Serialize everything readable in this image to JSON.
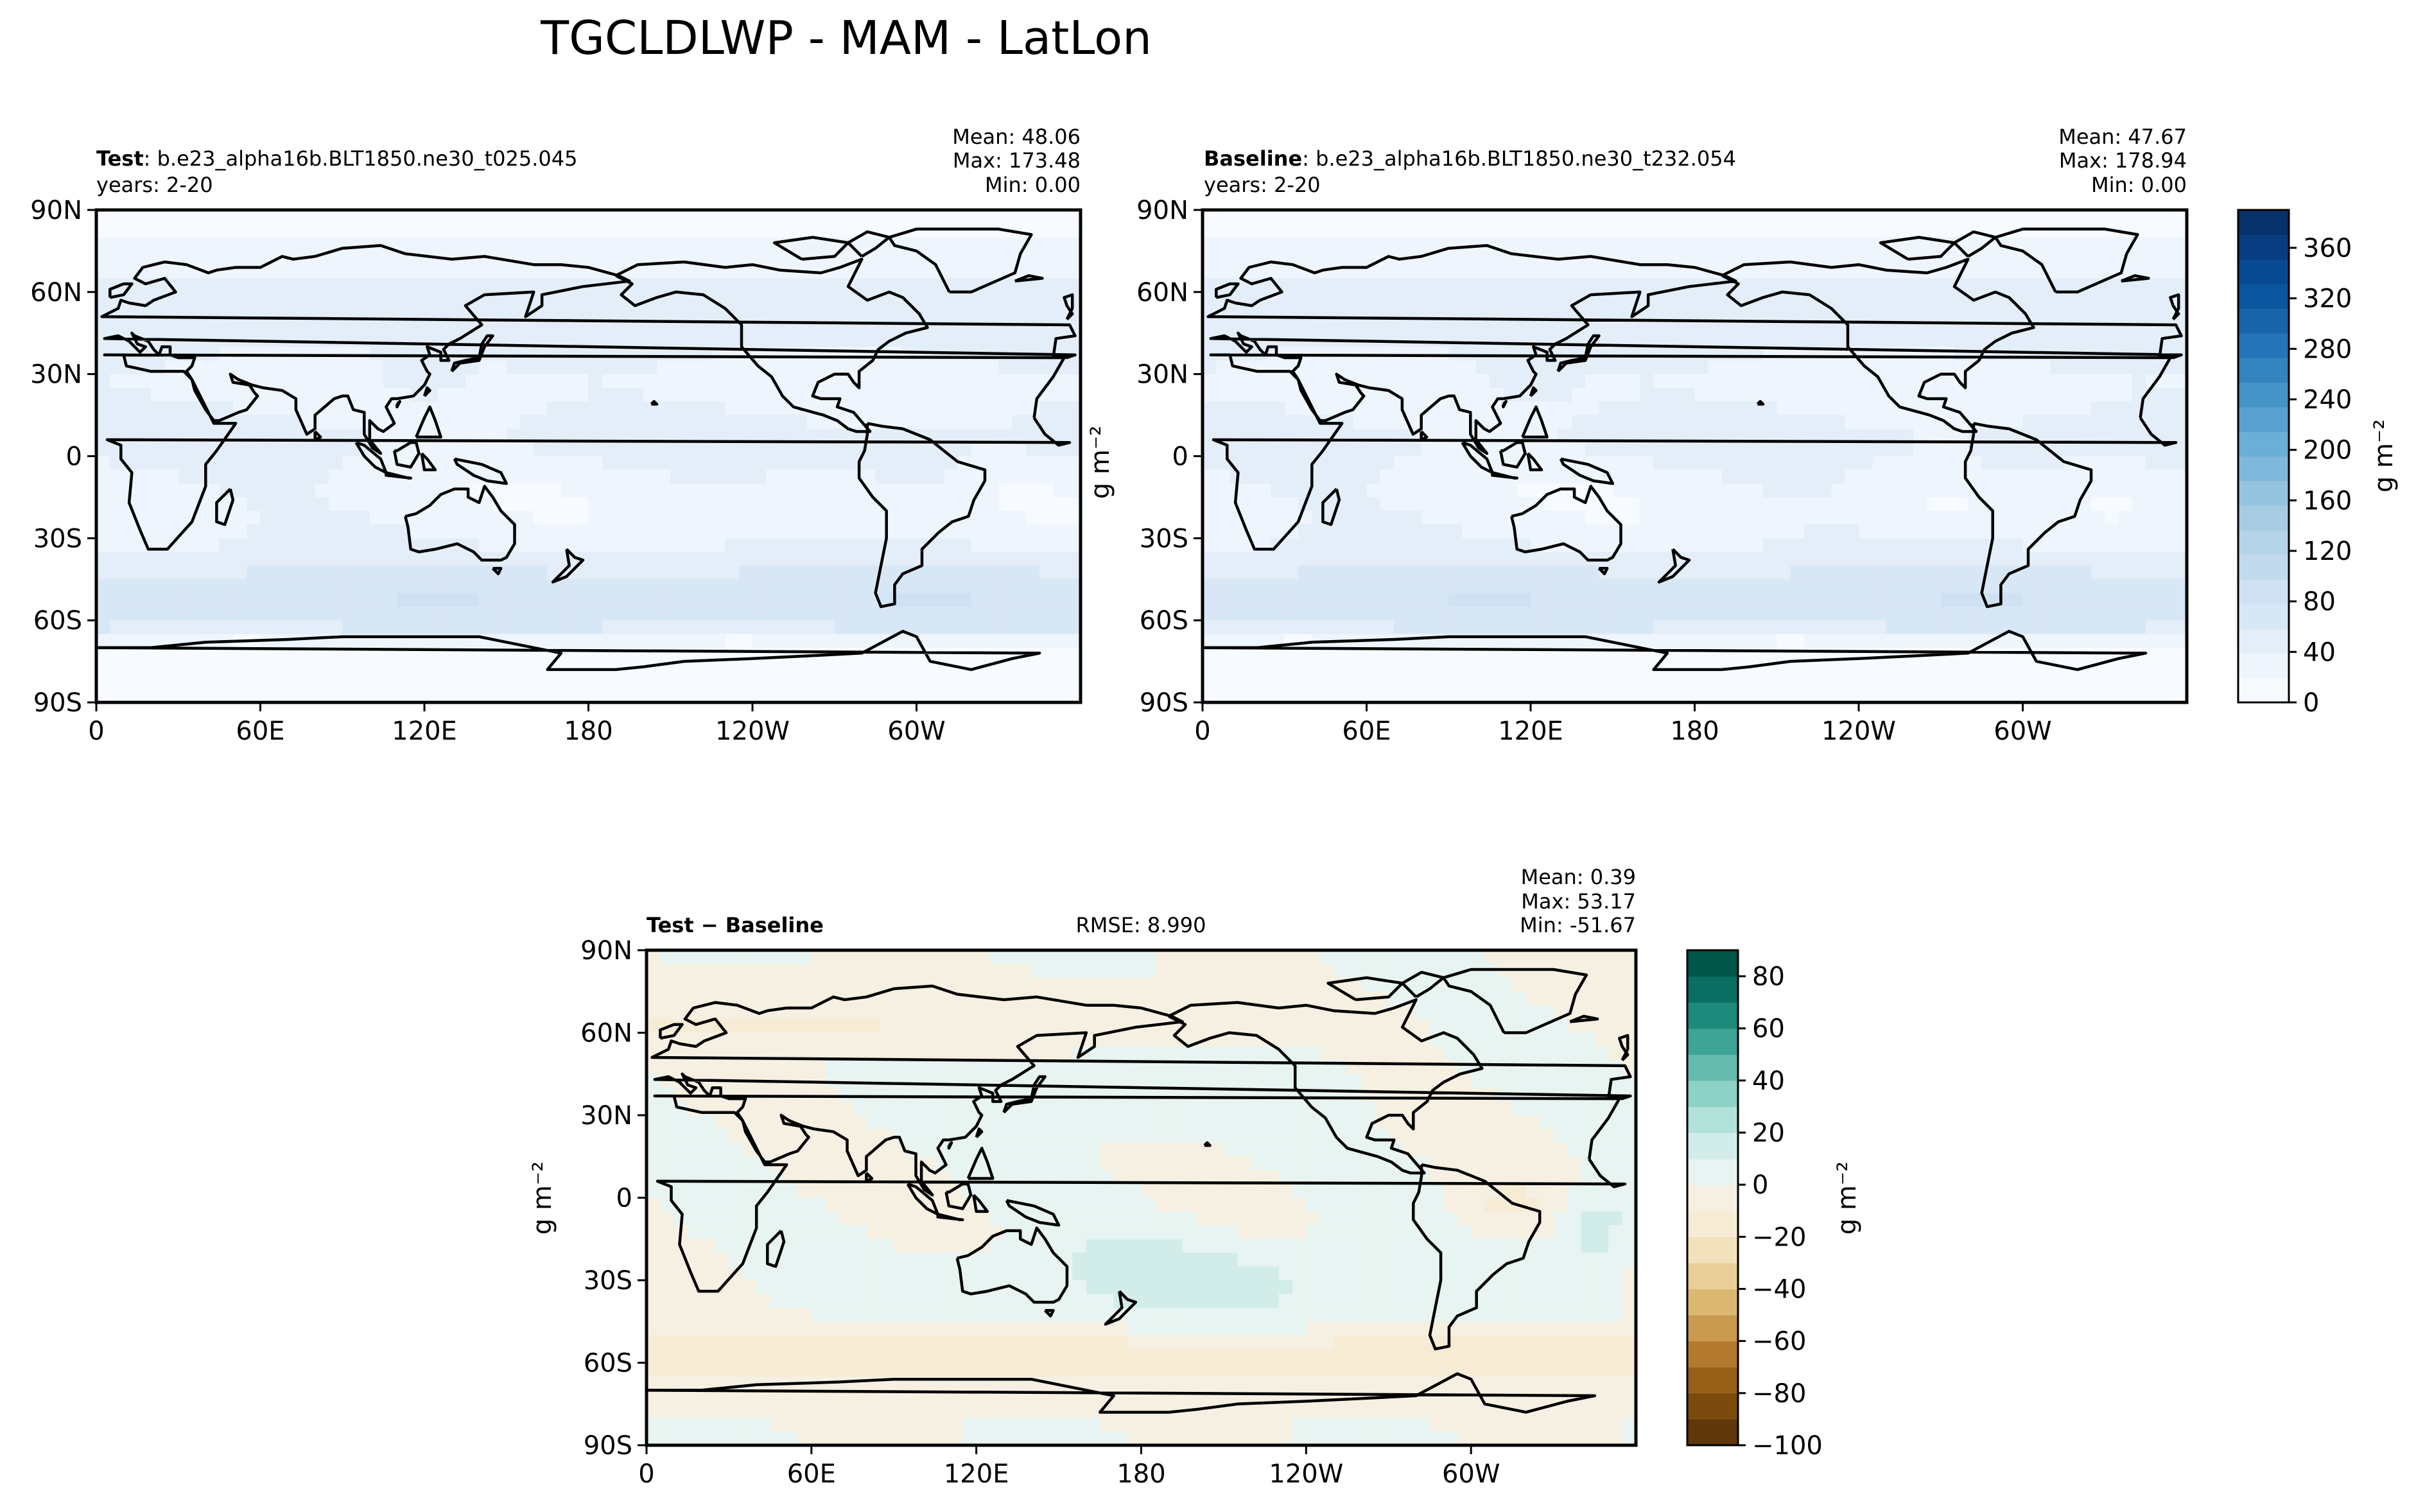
{
  "figure_title": "TGCLDLWP - MAM - LatLon",
  "colors": {
    "frame": "#000000",
    "coast": "#000000",
    "blues": [
      "#f7fbff",
      "#eef5fc",
      "#e3eef9",
      "#d8e7f5",
      "#cfe1f2",
      "#c3daee",
      "#b5d4e9",
      "#a6cbe3",
      "#94c4df",
      "#7fb8da",
      "#6baed6",
      "#58a1cf",
      "#4594c7",
      "#3383be",
      "#2474b7",
      "#1764ab",
      "#0b559f",
      "#084a91",
      "#083e81",
      "#08306b"
    ],
    "brbg": [
      "#5f370a",
      "#7a4a0f",
      "#975f18",
      "#b37a2f",
      "#c9994f",
      "#dbb872",
      "#e9cf97",
      "#f2e2bc",
      "#f6ecd6",
      "#f5f0e2",
      "#e7f4f1",
      "#d2ede9",
      "#b2e1d9",
      "#8ed1c6",
      "#66bbae",
      "#3ea495",
      "#1d8a7c",
      "#0a6e62",
      "#005548"
    ]
  },
  "panels": {
    "test": {
      "label_bold": "Test",
      "label_rest": ": b.e23_alpha16b.BLT1850.ne30_t025.045",
      "years": "years: 2-20",
      "stats": [
        "Mean: 48.06",
        "Max: 173.48",
        "Min:  0.00"
      ]
    },
    "baseline": {
      "label_bold": "Baseline",
      "label_rest": ": b.e23_alpha16b.BLT1850.ne30_t232.054",
      "years": "years: 2-20",
      "stats": [
        "Mean: 47.67",
        "Max: 178.94",
        "Min:  0.00"
      ],
      "ylabel": "g m⁻²"
    },
    "diff": {
      "label": "Test − Baseline",
      "rmse": "RMSE: 8.990",
      "stats": [
        "Mean:  0.39",
        "Max: 53.17",
        "Min: -51.67"
      ],
      "ylabel": "g m⁻²"
    }
  },
  "axes": {
    "x_ticks": [
      "0",
      "60E",
      "120E",
      "180",
      "120W",
      "60W"
    ],
    "y_ticks": [
      "90N",
      "60N",
      "30N",
      "0",
      "30S",
      "60S",
      "90S"
    ]
  },
  "colorbar_top": {
    "label": "g m⁻²",
    "ticks": [
      "0",
      "40",
      "80",
      "120",
      "160",
      "200",
      "240",
      "280",
      "320",
      "360"
    ],
    "range": [
      0,
      390
    ]
  },
  "colorbar_diff": {
    "label": "g m⁻²",
    "ticks": [
      "−100",
      "−80",
      "−60",
      "−40",
      "−20",
      "0",
      "20",
      "40",
      "60",
      "80"
    ],
    "range": [
      -100,
      90
    ]
  },
  "chart_data": [
    {
      "type": "heatmap",
      "title": "Test: b.e23_alpha16b.BLT1850.ne30_t025.045",
      "variable": "TGCLDLWP",
      "season": "MAM",
      "x_ticks": [
        "0",
        "60E",
        "120E",
        "180",
        "120W",
        "60W"
      ],
      "y_ticks": [
        "90N",
        "60N",
        "30N",
        "0",
        "30S",
        "60S",
        "90S"
      ],
      "xlim": [
        0,
        360
      ],
      "ylim": [
        -90,
        90
      ],
      "colormap": "Blues",
      "value_range": [
        0,
        390
      ],
      "mean": 48.06,
      "max": 173.48,
      "min": 0.0
    },
    {
      "type": "heatmap",
      "title": "Baseline: b.e23_alpha16b.BLT1850.ne30_t232.054",
      "variable": "TGCLDLWP",
      "season": "MAM",
      "x_ticks": [
        "0",
        "60E",
        "120E",
        "180",
        "120W",
        "60W"
      ],
      "y_ticks": [
        "90N",
        "60N",
        "30N",
        "0",
        "30S",
        "60S",
        "90S"
      ],
      "xlim": [
        0,
        360
      ],
      "ylim": [
        -90,
        90
      ],
      "colormap": "Blues",
      "value_range": [
        0,
        390
      ],
      "mean": 47.67,
      "max": 178.94,
      "min": 0.0
    },
    {
      "type": "heatmap",
      "title": "Test − Baseline",
      "variable": "TGCLDLWP",
      "season": "MAM",
      "x_ticks": [
        "0",
        "60E",
        "120E",
        "180",
        "120W",
        "60W"
      ],
      "y_ticks": [
        "90N",
        "60N",
        "30N",
        "0",
        "30S",
        "60S",
        "90S"
      ],
      "xlim": [
        0,
        360
      ],
      "ylim": [
        -90,
        90
      ],
      "colormap": "BrBG",
      "value_range": [
        -100,
        90
      ],
      "rmse": 8.99,
      "mean": 0.39,
      "max": 53.17,
      "min": -51.67
    }
  ]
}
